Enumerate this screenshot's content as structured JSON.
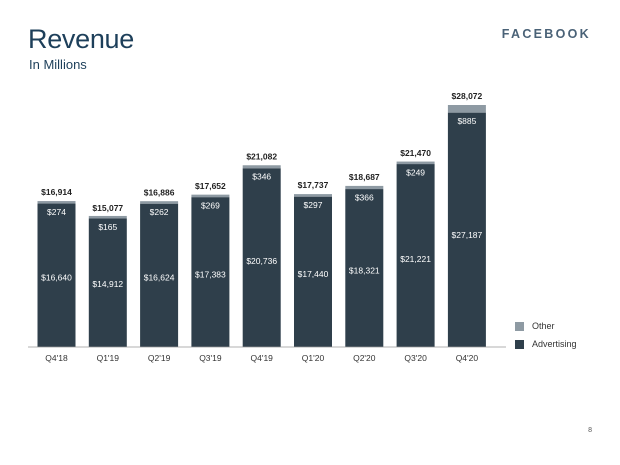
{
  "header": {
    "title": "Revenue",
    "subtitle": "In Millions",
    "brand": "FACEBOOK"
  },
  "page_number": "8",
  "colors": {
    "advertising": "#2f3f4b",
    "other": "#8e9aa3",
    "title": "#1d3f5a"
  },
  "chart_data": {
    "type": "bar",
    "stacked": true,
    "categories": [
      "Q4'18",
      "Q1'19",
      "Q2'19",
      "Q3'19",
      "Q4'19",
      "Q1'20",
      "Q2'20",
      "Q3'20",
      "Q4'20"
    ],
    "series": [
      {
        "name": "Advertising",
        "values": [
          16640,
          14912,
          16624,
          17383,
          20736,
          17440,
          18321,
          21221,
          27187
        ],
        "labels": [
          "$16,640",
          "$14,912",
          "$16,624",
          "$17,383",
          "$20,736",
          "$17,440",
          "$18,321",
          "$21,221",
          "$27,187"
        ]
      },
      {
        "name": "Other",
        "values": [
          274,
          165,
          262,
          269,
          346,
          297,
          366,
          249,
          885
        ],
        "labels": [
          "$274",
          "$165",
          "$262",
          "$269",
          "$346",
          "$297",
          "$366",
          "$249",
          "$885"
        ]
      }
    ],
    "totals": [
      16914,
      15077,
      16886,
      17652,
      21082,
      17737,
      18687,
      21470,
      28072
    ],
    "total_labels": [
      "$16,914",
      "$15,077",
      "$16,886",
      "$17,652",
      "$21,082",
      "$17,737",
      "$18,687",
      "$21,470",
      "$28,072"
    ],
    "ylim": [
      0,
      28072
    ],
    "grid": false,
    "legend": {
      "position": "bottom-right",
      "entries": [
        "Other",
        "Advertising"
      ]
    }
  }
}
